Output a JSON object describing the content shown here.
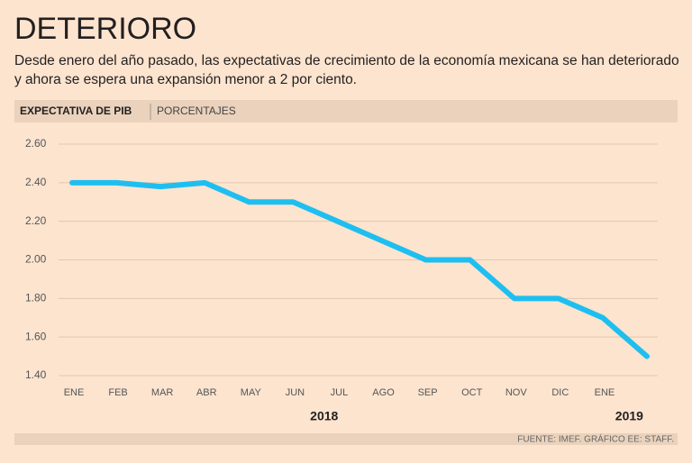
{
  "chart_data": {
    "type": "line",
    "title": "DETERIORO",
    "subtitle": [
      "Desde enero del año pasado, las expectativas de crecimiento de la economía mexicana se han deteriorado",
      "y ahora se espera una expansión menor a 2 por ciento."
    ],
    "band_label": "EXPECTATIVA DE PIB",
    "band_unit": "PORCENTAJES",
    "categories": [
      "ENE",
      "FEB",
      "MAR",
      "ABR",
      "MAY",
      "JUN",
      "JUL",
      "AGO",
      "SEP",
      "OCT",
      "NOV",
      "DIC",
      "ENE",
      null
    ],
    "years": [
      {
        "label": "2018",
        "index": 5.7
      },
      {
        "label": "2019",
        "index": 12.6
      }
    ],
    "series": [
      {
        "name": "Expectativa de PIB",
        "color": "#1ebff0",
        "values": [
          2.4,
          2.4,
          2.38,
          2.4,
          2.3,
          2.3,
          2.2,
          2.1,
          2.0,
          2.0,
          1.8,
          1.8,
          1.7,
          1.5
        ]
      }
    ],
    "ylim": [
      1.4,
      2.6
    ],
    "yticks": [
      {
        "value": 1.4,
        "label": "1.40"
      },
      {
        "value": 1.6,
        "label": "1.60"
      },
      {
        "value": 1.8,
        "label": "1.80"
      },
      {
        "value": 2.0,
        "label": "2.00"
      },
      {
        "value": 2.2,
        "label": "2.20"
      },
      {
        "value": 2.4,
        "label": "2.40"
      },
      {
        "value": 2.6,
        "label": "2.60"
      }
    ],
    "grid": true,
    "source": "FUENTE: IMEF. GRÁFICO EE: STAFF."
  }
}
